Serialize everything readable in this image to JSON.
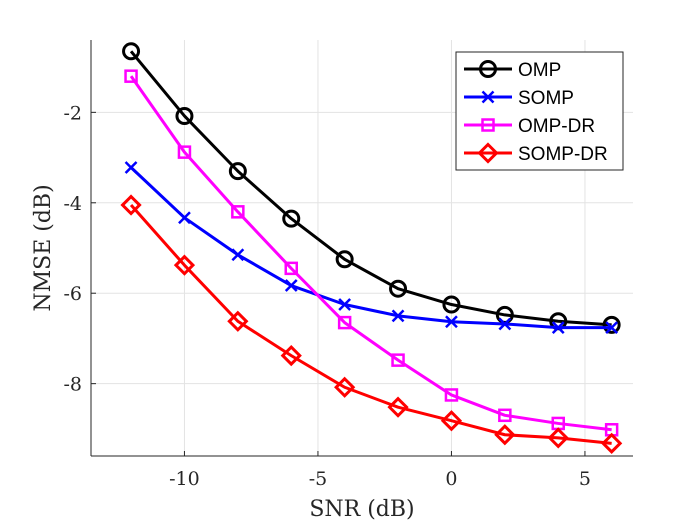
{
  "chart_data": {
    "type": "line",
    "title": "",
    "xlabel": "SNR (dB)",
    "ylabel": "NMSE (dB)",
    "xlim": [
      -13.5,
      6.8
    ],
    "ylim": [
      -9.6,
      -0.4
    ],
    "xticks": [
      -10,
      -5,
      0,
      5
    ],
    "xtick_labels": [
      "-10",
      "-5",
      "0",
      "5"
    ],
    "yticks": [
      -8,
      -6,
      -4,
      -2
    ],
    "ytick_labels": [
      "-8",
      "-6",
      "-4",
      "-2"
    ],
    "grid": true,
    "legend_position": "top-right",
    "x": [
      -12,
      -10,
      -8,
      -6,
      -4,
      -2,
      0,
      2,
      4,
      6
    ],
    "series": [
      {
        "name": "OMP",
        "color": "#000000",
        "marker": "circle",
        "values": [
          -0.65,
          -2.08,
          -3.3,
          -4.35,
          -5.25,
          -5.9,
          -6.25,
          -6.48,
          -6.62,
          -6.7
        ]
      },
      {
        "name": "SOMP",
        "color": "#0000ff",
        "marker": "x",
        "values": [
          -3.22,
          -4.33,
          -5.15,
          -5.83,
          -6.25,
          -6.5,
          -6.63,
          -6.68,
          -6.76,
          -6.76
        ]
      },
      {
        "name": "OMP-DR",
        "color": "#ff00ff",
        "marker": "square",
        "values": [
          -1.2,
          -2.88,
          -4.2,
          -5.45,
          -6.65,
          -7.48,
          -8.25,
          -8.7,
          -8.88,
          -9.02
        ]
      },
      {
        "name": "SOMP-DR",
        "color": "#ff0000",
        "marker": "diamond",
        "values": [
          -4.05,
          -5.38,
          -6.62,
          -7.38,
          -8.08,
          -8.52,
          -8.82,
          -9.13,
          -9.2,
          -9.32
        ]
      }
    ]
  }
}
